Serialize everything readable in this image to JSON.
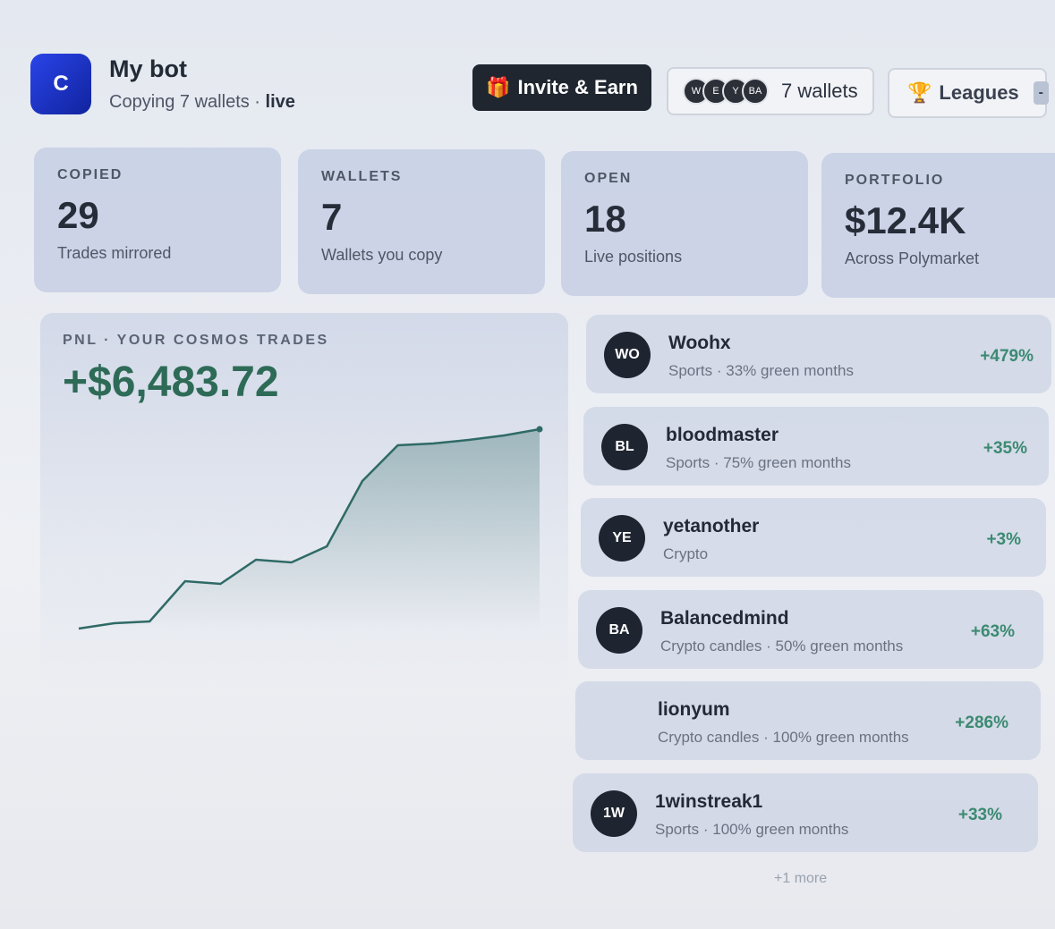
{
  "header": {
    "logo": "C",
    "title": "My bot",
    "subtitle": "Copying 7 wallets ·",
    "status": "live",
    "invite_button": "Invite & Earn",
    "wallet_avatars": [
      "W",
      "E",
      "Y",
      "BA"
    ],
    "wallets_button": "7 wallets",
    "leagues_button": "Leagues",
    "leagues_badge": "-"
  },
  "stats": [
    {
      "label": "COPIED",
      "value": "29",
      "caption": "Trades mirrored"
    },
    {
      "label": "WALLETS",
      "value": "7",
      "caption": "Wallets you copy"
    },
    {
      "label": "OPEN",
      "value": "18",
      "caption": "Live positions"
    },
    {
      "label": "PORTFOLIO",
      "value": "$12.4K",
      "caption": "Across Polymarket"
    }
  ],
  "pnl_chart": {
    "type": "line",
    "title": "PNL · YOUR COSMOS TRADES",
    "total": "+$6,483.72",
    "color": "#2f6a66",
    "values": [
      0,
      174,
      233,
      1541,
      1454,
      2239,
      2152,
      2675,
      4797,
      5960,
      6018,
      6135,
      6280,
      6483.72
    ]
  },
  "wallets": [
    {
      "initials": "WO",
      "name": "Woohx",
      "meta": "Sports · 33% green months",
      "return": "+479%"
    },
    {
      "initials": "BL",
      "name": "bloodmaster",
      "meta": "Sports · 75% green months",
      "return": "+35%"
    },
    {
      "initials": "YE",
      "name": "yetanother",
      "meta": "Crypto",
      "return": "+3%"
    },
    {
      "initials": "BA",
      "name": "Balancedmind",
      "meta": "Crypto candles · 50% green months",
      "return": "+63%"
    },
    {
      "name": "lionyum",
      "meta": "Crypto candles · 100% green months",
      "return": "+286%"
    },
    {
      "initials": "1W",
      "name": "1winstreak1",
      "meta": "Sports · 100% green months",
      "return": "+33%"
    }
  ],
  "more": "+1 more"
}
